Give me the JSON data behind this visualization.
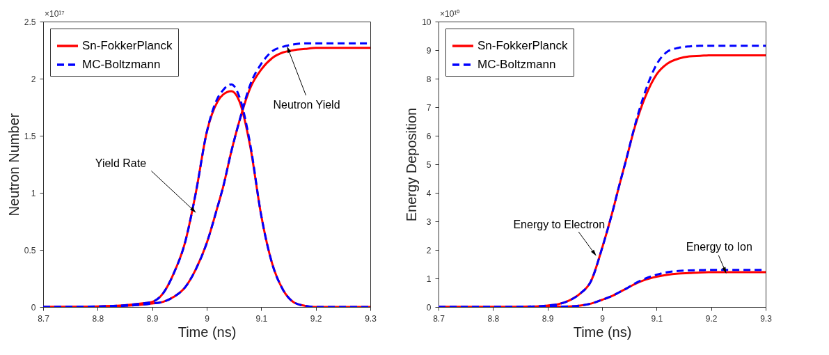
{
  "chart_data": [
    {
      "type": "line",
      "xlabel": "Time (ns)",
      "ylabel": "Neutron Number",
      "x": [
        8.7,
        8.8,
        8.85,
        8.88,
        8.9,
        8.92,
        8.94,
        8.96,
        8.98,
        9.0,
        9.02,
        9.03,
        9.045,
        9.06,
        9.08,
        9.1,
        9.12,
        9.14,
        9.16,
        9.18,
        9.2,
        9.25,
        9.3
      ],
      "series": [
        {
          "name": "Sn-FokkerPlanck",
          "color": "#ff0000",
          "line_style": "solid",
          "values": [
            0,
            0.005,
            0.015,
            0.03,
            0.045,
            0.12,
            0.3,
            0.56,
            1.0,
            1.53,
            1.8,
            1.86,
            1.89,
            1.8,
            1.4,
            0.8,
            0.38,
            0.15,
            0.04,
            0.01,
            0,
            0,
            0
          ]
        },
        {
          "color": "#ff0000",
          "line_style": "solid",
          "values": [
            0,
            0.003,
            0.01,
            0.02,
            0.03,
            0.045,
            0.09,
            0.17,
            0.33,
            0.56,
            0.88,
            1.05,
            1.36,
            1.63,
            1.92,
            2.08,
            2.18,
            2.23,
            2.25,
            2.26,
            2.27,
            2.27,
            2.27
          ]
        },
        {
          "name": "MC-Boltzmann",
          "color": "#0000ff",
          "line_style": "dashed",
          "values": [
            0,
            0.005,
            0.015,
            0.03,
            0.045,
            0.12,
            0.3,
            0.56,
            1.0,
            1.53,
            1.83,
            1.9,
            1.95,
            1.84,
            1.42,
            0.8,
            0.38,
            0.15,
            0.04,
            0.01,
            0,
            0,
            0
          ]
        },
        {
          "color": "#0000ff",
          "line_style": "dashed",
          "values": [
            0,
            0.003,
            0.01,
            0.02,
            0.03,
            0.045,
            0.09,
            0.17,
            0.33,
            0.56,
            0.88,
            1.05,
            1.36,
            1.63,
            1.95,
            2.13,
            2.24,
            2.28,
            2.3,
            2.31,
            2.31,
            2.31,
            2.31
          ]
        }
      ],
      "xlim": [
        8.7,
        9.3
      ],
      "xticks": [
        8.7,
        8.8,
        8.9,
        9,
        9.1,
        9.2,
        9.3
      ],
      "ylim": [
        0,
        2.5
      ],
      "yticks": [
        0,
        0.5,
        1,
        1.5,
        2,
        2.5
      ],
      "annotations": [
        "×10¹⁷",
        {
          "text": "Yield Rate",
          "x": 8.975,
          "y": 0.85
        },
        {
          "text": "Neutron Yield",
          "x": 9.15,
          "y": 2.25
        }
      ],
      "legend": "top left",
      "grid": false
    },
    {
      "type": "line",
      "xlabel": "Time (ns)",
      "ylabel": "Energy Deposition",
      "x": [
        8.7,
        8.8,
        8.85,
        8.88,
        8.9,
        8.92,
        8.94,
        8.96,
        8.98,
        9.0,
        9.02,
        9.03,
        9.045,
        9.06,
        9.08,
        9.1,
        9.12,
        9.14,
        9.16,
        9.18,
        9.2,
        9.25,
        9.3
      ],
      "series": [
        {
          "name": "Sn-FokkerPlanck",
          "color": "#ff0000",
          "line_style": "solid",
          "values": [
            0,
            0,
            0.01,
            0.02,
            0.05,
            0.1,
            0.23,
            0.47,
            0.92,
            2.06,
            3.4,
            4.15,
            5.22,
            6.3,
            7.4,
            8.15,
            8.53,
            8.7,
            8.78,
            8.8,
            8.82,
            8.82,
            8.82
          ]
        },
        {
          "color": "#ff0000",
          "line_style": "solid",
          "values": [
            0,
            0,
            0,
            0,
            0,
            0.01,
            0.02,
            0.05,
            0.12,
            0.25,
            0.4,
            0.5,
            0.65,
            0.8,
            0.96,
            1.06,
            1.13,
            1.17,
            1.19,
            1.21,
            1.22,
            1.22,
            1.22
          ]
        },
        {
          "name": "MC-Boltzmann",
          "color": "#0000ff",
          "line_style": "dashed",
          "values": [
            0,
            0,
            0.01,
            0.02,
            0.05,
            0.1,
            0.23,
            0.47,
            0.92,
            2.06,
            3.4,
            4.15,
            5.22,
            6.35,
            7.6,
            8.5,
            8.95,
            9.08,
            9.13,
            9.15,
            9.15,
            9.15,
            9.15
          ]
        },
        {
          "color": "#0000ff",
          "line_style": "dashed",
          "values": [
            0,
            0,
            0,
            0,
            0,
            0.01,
            0.02,
            0.05,
            0.12,
            0.25,
            0.4,
            0.5,
            0.65,
            0.82,
            1.0,
            1.13,
            1.22,
            1.26,
            1.28,
            1.29,
            1.3,
            1.3,
            1.3
          ]
        }
      ],
      "xlim": [
        8.7,
        9.3
      ],
      "xticks": [
        8.7,
        8.8,
        8.9,
        9,
        9.1,
        9.2,
        9.3
      ],
      "ylim": [
        0,
        10
      ],
      "yticks": [
        0,
        1,
        2,
        3,
        4,
        5,
        6,
        7,
        8,
        9,
        10
      ],
      "annotations": [
        "×10¹⁰",
        {
          "text": "Energy to Electron",
          "x": 8.985,
          "y": 1.9
        },
        {
          "text": "Energy to Ion",
          "x": 9.225,
          "y": 1.3
        }
      ],
      "legend": "top left",
      "grid": false
    }
  ]
}
